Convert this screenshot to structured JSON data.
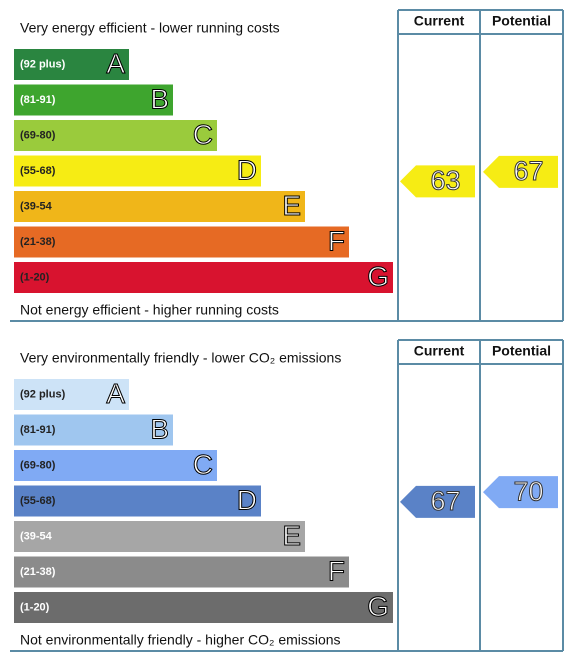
{
  "panels": [
    {
      "top_label": "Very energy efficient - lower running costs",
      "bottom_label": "Not energy efficient - higher running costs",
      "headers": [
        "Current",
        "Potential"
      ],
      "current": 63,
      "potential": 67,
      "bands": [
        {
          "range": "(92 plus)",
          "letter": "A",
          "color": "#2a8540",
          "text_color": "#ffffff"
        },
        {
          "range": "(81-91)",
          "letter": "B",
          "color": "#3ea52e",
          "text_color": "#ffffff"
        },
        {
          "range": "(69-80)",
          "letter": "C",
          "color": "#9acb3c",
          "text_color": "#222222"
        },
        {
          "range": "(55-68)",
          "letter": "D",
          "color": "#f6ec14",
          "text_color": "#222222"
        },
        {
          "range": "(39-54",
          "letter": "E",
          "color": "#f0b619",
          "text_color": "#222222"
        },
        {
          "range": "(21-38)",
          "letter": "F",
          "color": "#e66a24",
          "text_color": "#222222"
        },
        {
          "range": "(1-20)",
          "letter": "G",
          "color": "#d8132f",
          "text_color": "#222222"
        }
      ]
    },
    {
      "top_label": "Very environmentally friendly - lower CO₂ emissions",
      "bottom_label": "Not environmentally friendly - higher CO₂ emissions",
      "headers": [
        "Current",
        "Potential"
      ],
      "current": 67,
      "potential": 70,
      "bands": [
        {
          "range": "(92 plus)",
          "letter": "A",
          "color": "#cde3f7",
          "text_color": "#222222"
        },
        {
          "range": "(81-91)",
          "letter": "B",
          "color": "#9fc6ef",
          "text_color": "#222222"
        },
        {
          "range": "(69-80)",
          "letter": "C",
          "color": "#80aaf4",
          "text_color": "#222222"
        },
        {
          "range": "(55-68)",
          "letter": "D",
          "color": "#5a82c7",
          "text_color": "#222222"
        },
        {
          "range": "(39-54",
          "letter": "E",
          "color": "#a6a6a6",
          "text_color": "#ffffff"
        },
        {
          "range": "(21-38)",
          "letter": "F",
          "color": "#8b8b8b",
          "text_color": "#ffffff"
        },
        {
          "range": "(1-20)",
          "letter": "G",
          "color": "#6c6c6c",
          "text_color": "#ffffff"
        }
      ]
    }
  ]
}
